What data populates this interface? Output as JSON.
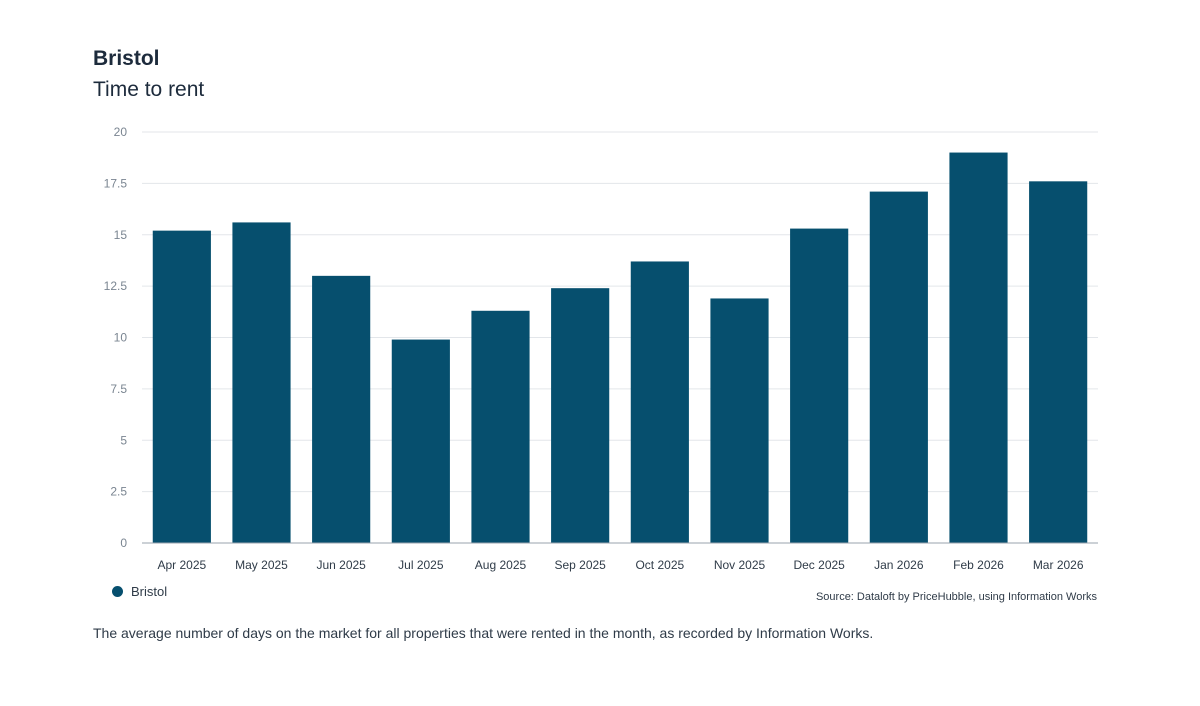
{
  "header": {
    "title": "Bristol",
    "subtitle": "Time to rent"
  },
  "colors": {
    "bar": "#064f6e",
    "grid": "#e3e6ea",
    "axis": "#9aa3ad"
  },
  "chart_data": {
    "type": "bar",
    "categories": [
      "Apr 2025",
      "May 2025",
      "Jun 2025",
      "Jul 2025",
      "Aug 2025",
      "Sep 2025",
      "Oct 2025",
      "Nov 2025",
      "Dec 2025",
      "Jan 2026",
      "Feb 2026",
      "Mar 2026"
    ],
    "series": [
      {
        "name": "Bristol",
        "values": [
          15.2,
          15.6,
          13.0,
          9.9,
          11.3,
          12.4,
          13.7,
          11.9,
          15.3,
          17.1,
          19.0,
          17.6
        ]
      }
    ],
    "ylim": [
      0,
      20
    ],
    "yticks": [
      0,
      2.5,
      5,
      7.5,
      10,
      12.5,
      15,
      17.5,
      20
    ],
    "ytick_labels": [
      "0",
      "2.5",
      "5",
      "7.5",
      "10",
      "12.5",
      "15",
      "17.5",
      "20"
    ],
    "grid": true,
    "legend_position": "bottom-left"
  },
  "legend": {
    "label": "Bristol"
  },
  "source": "Source: Dataloft by PriceHubble, using Information Works",
  "footnote": "The average number of days on the market for all properties that were rented in the month, as recorded by Information Works."
}
